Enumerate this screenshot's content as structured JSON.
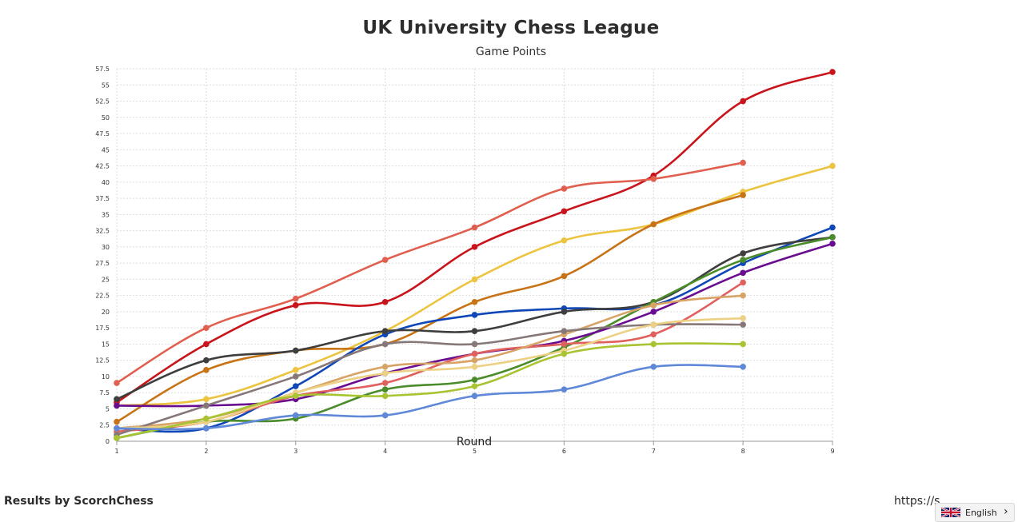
{
  "chart_data": {
    "type": "line",
    "title": "UK University Chess League",
    "subtitle": "Game Points",
    "xlabel": "Round",
    "ylabel": "",
    "x": [
      1,
      2,
      3,
      4,
      5,
      6,
      7,
      8,
      9
    ],
    "ylim": [
      0,
      57.5
    ],
    "yticks": [
      0,
      2.5,
      5,
      7.5,
      10,
      12.5,
      15,
      17.5,
      20,
      22.5,
      25,
      27.5,
      30,
      32.5,
      35,
      37.5,
      40,
      42.5,
      45,
      47.5,
      50,
      52.5,
      55,
      57.5
    ],
    "grid": true,
    "series": [
      {
        "color": "#c8141a",
        "values": [
          6,
          15,
          21,
          21.5,
          30,
          35.5,
          41,
          52.5,
          57
        ]
      },
      {
        "color": "#e05f4e",
        "values": [
          9,
          17.5,
          22,
          28,
          33,
          39,
          40.5,
          43,
          null
        ]
      },
      {
        "color": "#ecc440",
        "values": [
          5.5,
          6.5,
          11,
          17,
          25,
          31,
          33.5,
          38.5,
          42.5
        ]
      },
      {
        "color": "#c77316",
        "values": [
          3,
          11,
          14,
          15,
          21.5,
          25.5,
          33.5,
          38,
          null
        ]
      },
      {
        "color": "#0f47b8",
        "values": [
          2,
          2,
          8.5,
          16.5,
          19.5,
          20.5,
          21,
          27.5,
          33
        ]
      },
      {
        "color": "#3e3e3e",
        "values": [
          6.5,
          12.5,
          14,
          17,
          17,
          20,
          21.5,
          29,
          31.5
        ]
      },
      {
        "color": "#4a8c2a",
        "values": [
          0.5,
          3,
          3.5,
          8,
          9.5,
          14.5,
          21.5,
          28,
          31.5
        ]
      },
      {
        "color": "#6a0c8f",
        "values": [
          5.5,
          5.5,
          6.5,
          10.5,
          13.5,
          15.5,
          20,
          26,
          30.5
        ]
      },
      {
        "color": "#e0605e",
        "values": [
          1.5,
          3,
          7,
          9,
          13.5,
          15,
          16.5,
          24.5,
          null
        ]
      },
      {
        "color": "#d8a466",
        "values": [
          2,
          3.5,
          7.5,
          11.5,
          12.5,
          16.5,
          21,
          22.5,
          null
        ]
      },
      {
        "color": "#867878",
        "values": [
          1,
          5.5,
          10,
          15,
          15,
          17,
          18,
          18,
          null
        ]
      },
      {
        "color": "#ecd184",
        "values": [
          2,
          3,
          7.5,
          10.5,
          11.5,
          14,
          18,
          19,
          null
        ]
      },
      {
        "color": "#a9c432",
        "values": [
          0.5,
          3.5,
          7,
          7,
          8.5,
          13.5,
          15,
          15,
          null
        ]
      },
      {
        "color": "#5f89d8",
        "values": [
          2,
          2,
          4,
          4,
          7,
          8,
          11.5,
          11.5,
          null
        ]
      }
    ]
  },
  "footer": {
    "credit": "Results by ScorchChess",
    "url": "https://s"
  },
  "language": {
    "label": "English",
    "flag_icon": "uk-flag-icon"
  }
}
